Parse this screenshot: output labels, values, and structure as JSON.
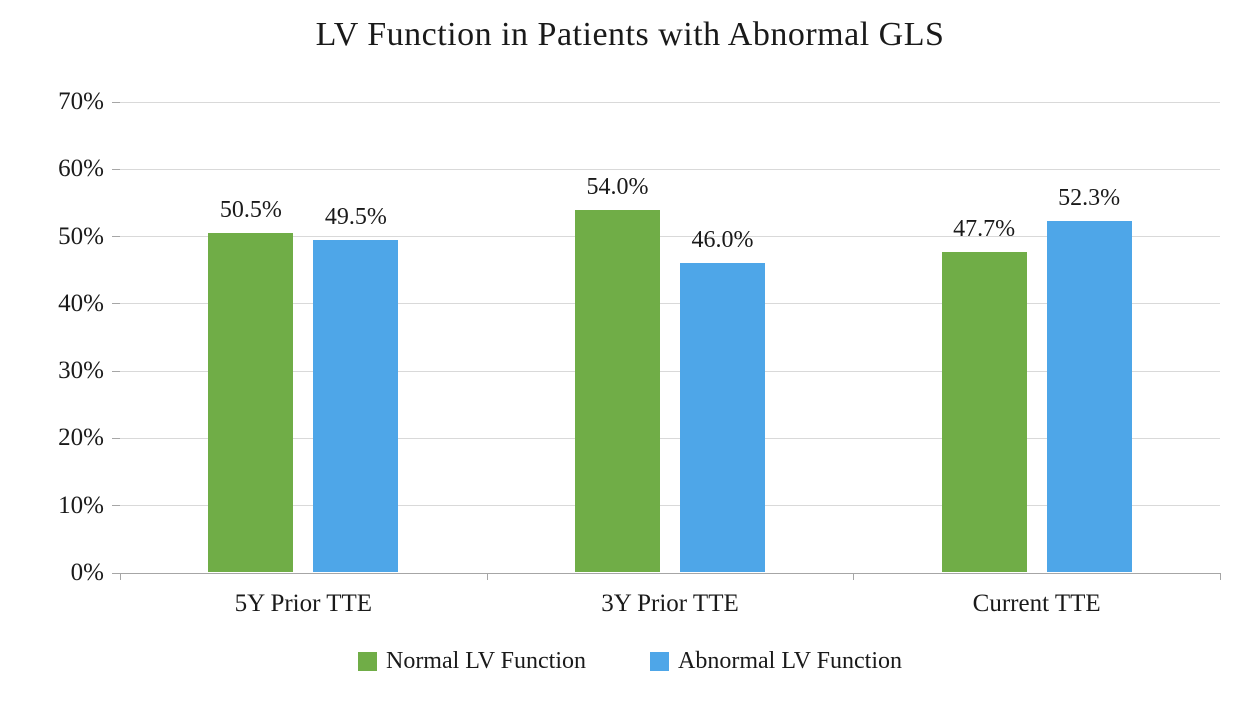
{
  "chart_data": {
    "type": "bar",
    "title": "LV Function in Patients with Abnormal GLS",
    "categories": [
      "5Y Prior TTE",
      "3Y Prior TTE",
      "Current TTE"
    ],
    "series": [
      {
        "name": "Normal LV Function",
        "color": "#70AD47",
        "values": [
          50.5,
          54.0,
          47.7
        ],
        "labels": [
          "50.5%",
          "54.0%",
          "47.7%"
        ]
      },
      {
        "name": "Abnormal LV Function",
        "color": "#4EA6E8",
        "values": [
          49.5,
          46.0,
          52.3
        ],
        "labels": [
          "49.5%",
          "46.0%",
          "52.3%"
        ]
      }
    ],
    "xlabel": "",
    "ylabel": "",
    "ylim": [
      0,
      70
    ],
    "yticks": [
      "0%",
      "10%",
      "20%",
      "30%",
      "40%",
      "50%",
      "60%",
      "70%"
    ],
    "grid": true,
    "legend_position": "bottom"
  }
}
